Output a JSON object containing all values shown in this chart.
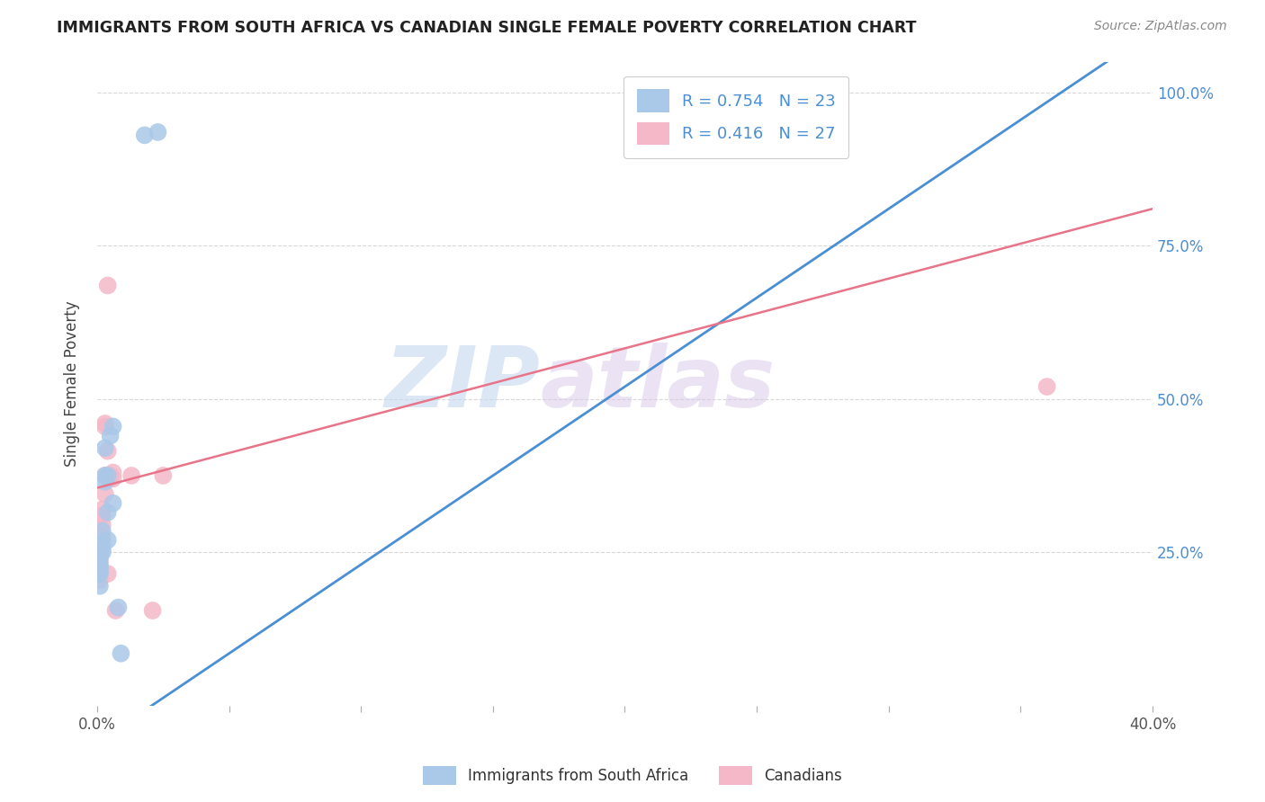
{
  "title": "IMMIGRANTS FROM SOUTH AFRICA VS CANADIAN SINGLE FEMALE POVERTY CORRELATION CHART",
  "source": "Source: ZipAtlas.com",
  "ylabel": "Single Female Poverty",
  "ytick_labels": [
    "25.0%",
    "50.0%",
    "75.0%",
    "100.0%"
  ],
  "ytick_values": [
    0.25,
    0.5,
    0.75,
    1.0
  ],
  "legend_entries": [
    {
      "label": "R = 0.754   N = 23"
    },
    {
      "label": "R = 0.416   N = 27"
    }
  ],
  "legend_bottom": [
    {
      "label": "Immigrants from South Africa"
    },
    {
      "label": "Canadians"
    }
  ],
  "blue_scatter": [
    [
      0.001,
      0.195
    ],
    [
      0.001,
      0.215
    ],
    [
      0.001,
      0.22
    ],
    [
      0.001,
      0.225
    ],
    [
      0.001,
      0.23
    ],
    [
      0.001,
      0.24
    ],
    [
      0.002,
      0.25
    ],
    [
      0.002,
      0.255
    ],
    [
      0.002,
      0.265
    ],
    [
      0.002,
      0.285
    ],
    [
      0.003,
      0.365
    ],
    [
      0.003,
      0.375
    ],
    [
      0.003,
      0.42
    ],
    [
      0.004,
      0.27
    ],
    [
      0.004,
      0.315
    ],
    [
      0.004,
      0.375
    ],
    [
      0.005,
      0.44
    ],
    [
      0.006,
      0.455
    ],
    [
      0.006,
      0.33
    ],
    [
      0.008,
      0.16
    ],
    [
      0.009,
      0.085
    ],
    [
      0.018,
      0.93
    ],
    [
      0.023,
      0.935
    ]
  ],
  "pink_scatter": [
    [
      0.001,
      0.205
    ],
    [
      0.001,
      0.215
    ],
    [
      0.001,
      0.225
    ],
    [
      0.001,
      0.235
    ],
    [
      0.001,
      0.245
    ],
    [
      0.001,
      0.25
    ],
    [
      0.002,
      0.275
    ],
    [
      0.002,
      0.295
    ],
    [
      0.002,
      0.31
    ],
    [
      0.002,
      0.32
    ],
    [
      0.003,
      0.345
    ],
    [
      0.003,
      0.375
    ],
    [
      0.003,
      0.455
    ],
    [
      0.003,
      0.46
    ],
    [
      0.004,
      0.215
    ],
    [
      0.004,
      0.37
    ],
    [
      0.004,
      0.415
    ],
    [
      0.004,
      0.685
    ],
    [
      0.005,
      0.37
    ],
    [
      0.005,
      0.375
    ],
    [
      0.006,
      0.37
    ],
    [
      0.006,
      0.38
    ],
    [
      0.007,
      0.155
    ],
    [
      0.013,
      0.375
    ],
    [
      0.021,
      0.155
    ],
    [
      0.025,
      0.375
    ],
    [
      0.36,
      0.52
    ]
  ],
  "blue_line_x": [
    0.0,
    0.4
  ],
  "blue_line_y": [
    -0.06,
    1.1
  ],
  "pink_line_x": [
    0.0,
    0.4
  ],
  "pink_line_y": [
    0.355,
    0.81
  ],
  "blue_color": "#4a8fd4",
  "pink_color": "#e8748a",
  "blue_scatter_color": "#aac8e8",
  "pink_scatter_color": "#f4b8c8",
  "watermark_zip": "ZIP",
  "watermark_atlas": "atlas",
  "xlim": [
    0.0,
    0.4
  ],
  "ylim": [
    0.0,
    1.05
  ],
  "background_color": "#ffffff",
  "grid_color": "#d8d8d8"
}
